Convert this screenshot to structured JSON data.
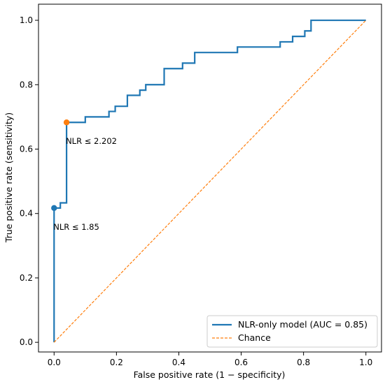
{
  "chart_data": {
    "type": "line",
    "xlabel": "False positive rate (1 − specificity)",
    "ylabel": "True positive rate (sensitivity)",
    "xlim": [
      -0.05,
      1.05
    ],
    "ylim": [
      -0.03,
      1.05
    ],
    "xticks": [
      "0.0",
      "0.2",
      "0.4",
      "0.6",
      "0.8",
      "1.0"
    ],
    "yticks": [
      "0.0",
      "0.2",
      "0.4",
      "0.6",
      "0.8",
      "1.0"
    ],
    "grid": false,
    "legend_position": "lower-right",
    "series": [
      {
        "name": "NLR-only model (AUC = 0.85)",
        "color": "#1f77b4",
        "style": "solid",
        "points": [
          [
            0.0,
            0.0
          ],
          [
            0.0,
            0.417
          ],
          [
            0.02,
            0.417
          ],
          [
            0.02,
            0.433
          ],
          [
            0.04,
            0.433
          ],
          [
            0.04,
            0.683
          ],
          [
            0.1,
            0.683
          ],
          [
            0.1,
            0.7
          ],
          [
            0.176,
            0.7
          ],
          [
            0.176,
            0.717
          ],
          [
            0.196,
            0.717
          ],
          [
            0.196,
            0.733
          ],
          [
            0.235,
            0.733
          ],
          [
            0.235,
            0.767
          ],
          [
            0.275,
            0.767
          ],
          [
            0.275,
            0.783
          ],
          [
            0.294,
            0.783
          ],
          [
            0.294,
            0.8
          ],
          [
            0.353,
            0.8
          ],
          [
            0.353,
            0.85
          ],
          [
            0.412,
            0.85
          ],
          [
            0.412,
            0.867
          ],
          [
            0.451,
            0.867
          ],
          [
            0.451,
            0.9
          ],
          [
            0.588,
            0.9
          ],
          [
            0.588,
            0.917
          ],
          [
            0.725,
            0.917
          ],
          [
            0.725,
            0.933
          ],
          [
            0.765,
            0.933
          ],
          [
            0.765,
            0.95
          ],
          [
            0.804,
            0.95
          ],
          [
            0.804,
            0.967
          ],
          [
            0.824,
            0.967
          ],
          [
            0.824,
            1.0
          ],
          [
            1.0,
            1.0
          ]
        ]
      },
      {
        "name": "Chance",
        "color": "#ff7f0e",
        "style": "dashed",
        "points": [
          [
            0.0,
            0.0
          ],
          [
            1.0,
            1.0
          ]
        ]
      }
    ],
    "markers": [
      {
        "x": 0.0,
        "y": 0.417,
        "color": "#1f77b4",
        "label": "NLR ≤ 1.85"
      },
      {
        "x": 0.04,
        "y": 0.683,
        "color": "#ff7f0e",
        "label": "NLR ≤ 2.202"
      }
    ]
  }
}
